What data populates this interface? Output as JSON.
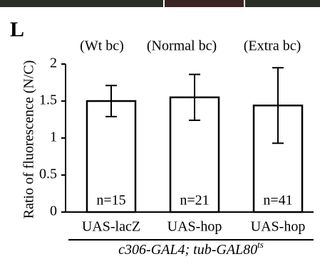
{
  "chart_data": {
    "type": "bar",
    "panel_label": "L",
    "ylabel": "Ratio of  fluorescence (N/C)",
    "group_labels": [
      "(Wt bc)",
      "(Normal bc)",
      "(Extra bc)"
    ],
    "categories": [
      "UAS-lacZ",
      "UAS-hop",
      "UAS-hop"
    ],
    "values": [
      1.5,
      1.55,
      1.44
    ],
    "errors": [
      0.21,
      0.31,
      0.51
    ],
    "annotations": [
      "n=15",
      "n=21",
      "n=41"
    ],
    "genotype": {
      "text": "c306-GAL4; tub-GAL80",
      "superscript": "ts"
    },
    "color": "#ffffff",
    "ylim": [
      0,
      2
    ],
    "yticks": [
      0,
      0.5,
      1,
      1.5,
      2
    ],
    "grid": false
  }
}
